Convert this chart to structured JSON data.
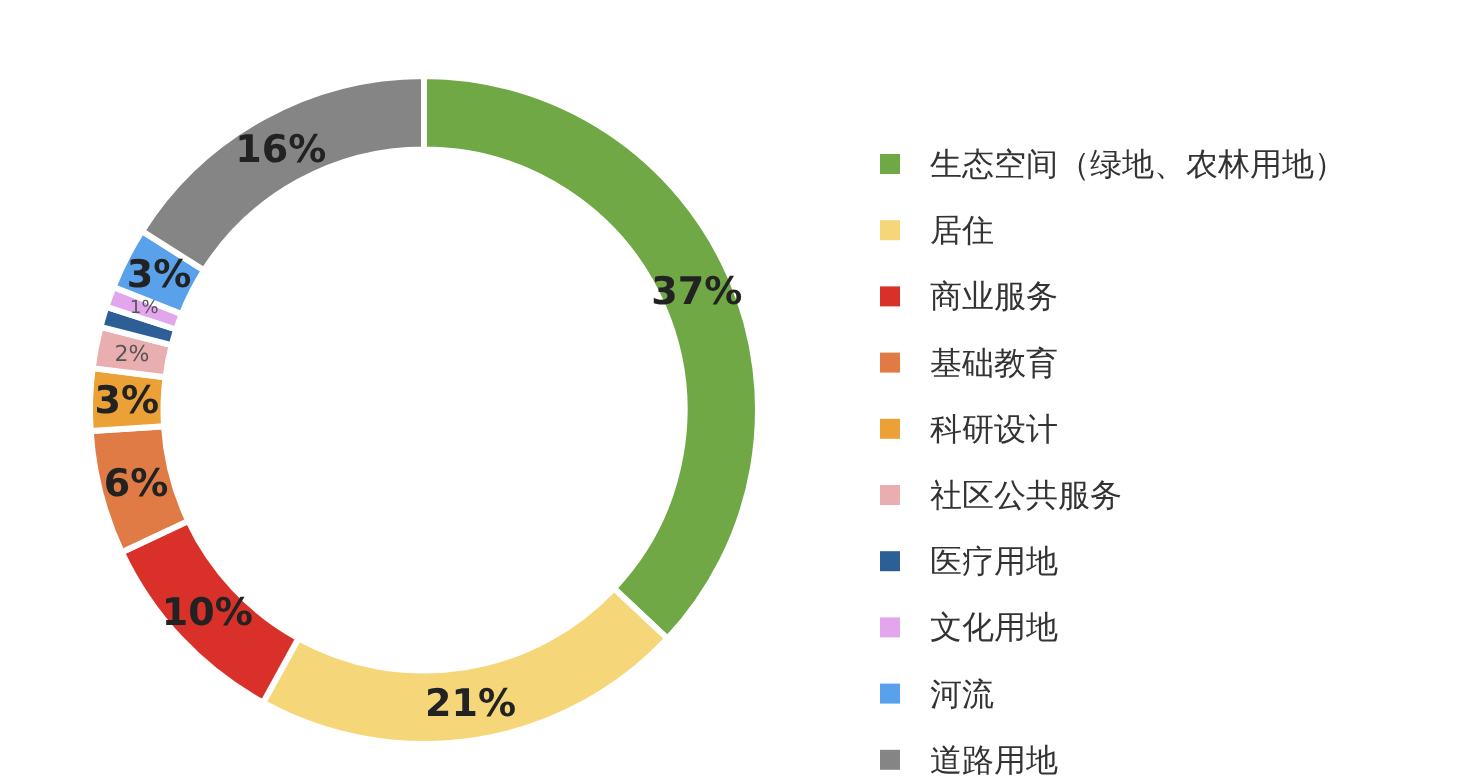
{
  "chart_data": {
    "type": "donut",
    "categories": [
      "生态空间（绿地、农林用地）",
      "居住",
      "商业服务",
      "基础教育",
      "科研设计",
      "社区公共服务",
      "医疗用地",
      "文化用地",
      "河流",
      "道路用地"
    ],
    "values": [
      37,
      21,
      10,
      6,
      3,
      2,
      1,
      1,
      3,
      16
    ],
    "colors": [
      "#70a845",
      "#f5d77a",
      "#d9312a",
      "#e07b45",
      "#eba135",
      "#e9aeb0",
      "#2b5f96",
      "#e3a6ec",
      "#5aa1ec",
      "#858585"
    ],
    "value_labels": [
      "37%",
      "21%",
      "10%",
      "6%",
      "3%",
      "2%",
      null,
      "1%",
      "3%",
      "16%"
    ],
    "legend": "right"
  }
}
